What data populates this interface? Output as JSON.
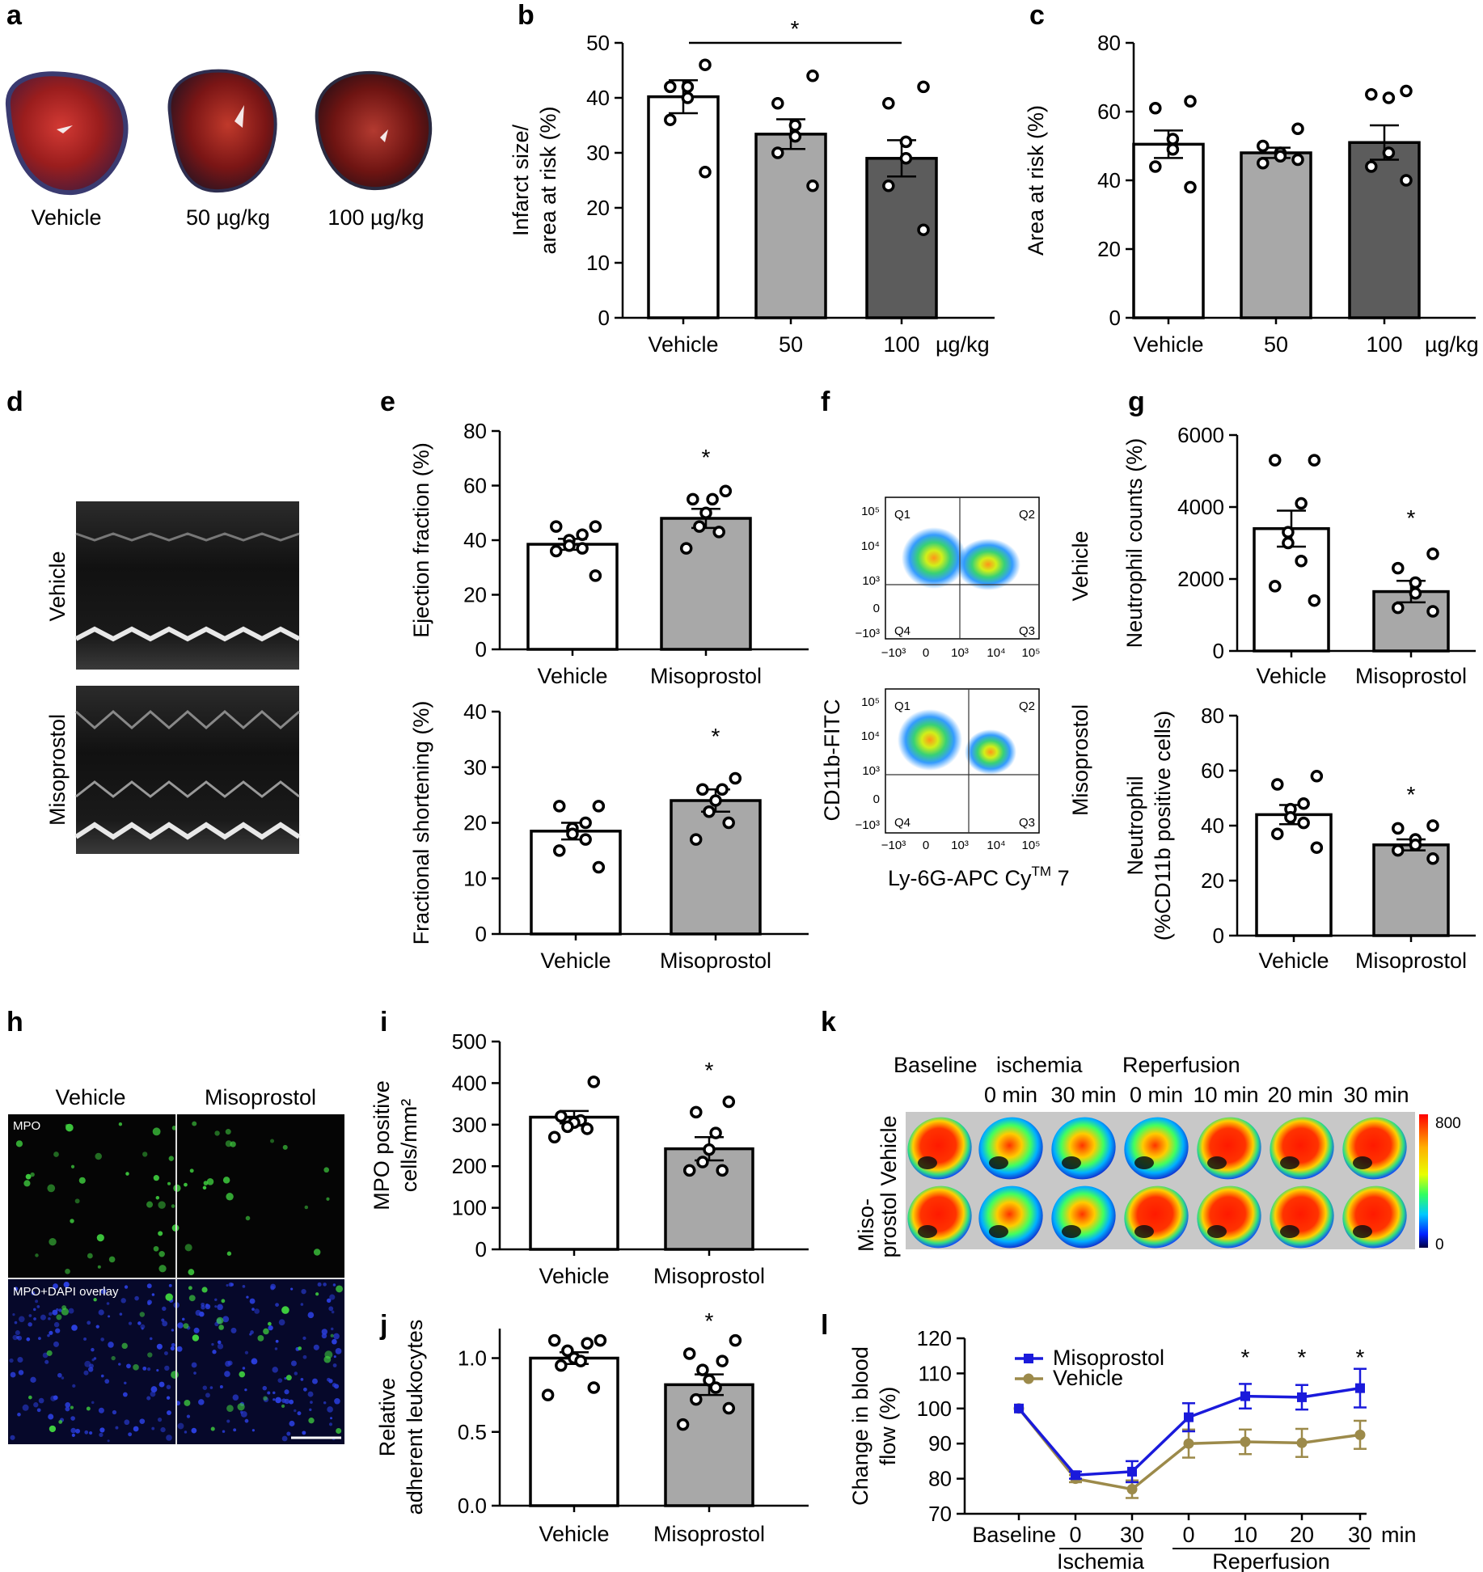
{
  "panel_labels": [
    "a",
    "b",
    "c",
    "d",
    "e",
    "f",
    "g",
    "h",
    "i",
    "j",
    "k",
    "l"
  ],
  "panel_a": {
    "labels": [
      "Vehicle",
      "50 µg/kg",
      "100 µg/kg"
    ]
  },
  "panel_d": {
    "labels": [
      "Vehicle",
      "Misoprostol"
    ]
  },
  "panel_f": {
    "xlabel": "Ly-6G-APC Cy",
    "xlabel_sup": "TM",
    "xlabel_end": " 7",
    "ylabel": "CD11b-FITC",
    "groups": [
      "Vehicle",
      "Misoprostol"
    ],
    "quadrants": [
      "Q1",
      "Q2",
      "Q3",
      "Q4"
    ],
    "ticks_x": [
      "−10³",
      "0",
      "10³",
      "10⁴",
      "10⁵"
    ],
    "ticks_y": [
      "10⁵",
      "10⁴",
      "10³",
      "0",
      "−10³"
    ]
  },
  "panel_h": {
    "columns": [
      "Vehicle",
      "Misoprostol"
    ],
    "row_labels": [
      "MPO",
      "MPO+DAPI overlay"
    ]
  },
  "panel_k": {
    "headers": [
      "Baseline",
      "ischemia",
      "Reperfusion"
    ],
    "times": [
      "0 min",
      "30 min",
      "0 min",
      "10 min",
      "20 min",
      "30 min"
    ],
    "rows": [
      "Vehicle",
      "Miso-",
      "prostol"
    ],
    "scale": [
      "800",
      "0"
    ]
  },
  "chart_data": [
    {
      "panel": "b",
      "type": "bar",
      "categories": [
        "Vehicle",
        "50",
        "100"
      ],
      "unit": "µg/kg",
      "values": [
        40.2,
        33.4,
        29.0
      ],
      "sem": [
        3.0,
        2.7,
        3.3
      ],
      "points": [
        [
          46,
          42,
          42,
          40,
          36,
          26.5
        ],
        [
          44,
          39,
          35,
          33,
          30,
          24
        ],
        [
          42,
          39,
          32,
          29,
          24,
          16
        ]
      ],
      "bar_colors": [
        "#ffffff",
        "#a8a8a8",
        "#5c5c5c"
      ],
      "ylabel": "Infarct size/\narea at risk (%)",
      "ylim": [
        0,
        50
      ],
      "yticks": [
        0,
        10,
        20,
        30,
        40,
        50
      ],
      "significance": "*"
    },
    {
      "panel": "c",
      "type": "bar",
      "categories": [
        "Vehicle",
        "50",
        "100"
      ],
      "unit": "µg/kg",
      "values": [
        50.5,
        48.0,
        51.0
      ],
      "sem": [
        4.0,
        1.5,
        5.0
      ],
      "points": [
        [
          63,
          61,
          52,
          49,
          44,
          38
        ],
        [
          55,
          50,
          48,
          47,
          45,
          46
        ],
        [
          66,
          65,
          64,
          48,
          44,
          40
        ]
      ],
      "bar_colors": [
        "#ffffff",
        "#a8a8a8",
        "#5c5c5c"
      ],
      "ylabel": "Area at risk (%)",
      "ylim": [
        0,
        80
      ],
      "yticks": [
        0,
        20,
        40,
        60,
        80
      ]
    },
    {
      "panel": "e-top",
      "type": "bar",
      "categories": [
        "Vehicle",
        "Misoprostol"
      ],
      "values": [
        38.5,
        48.0
      ],
      "sem": [
        2.0,
        3.5
      ],
      "points": [
        [
          45,
          45,
          42,
          40,
          38,
          37,
          36,
          27
        ],
        [
          58,
          55,
          55,
          50,
          45,
          43,
          37
        ]
      ],
      "bar_colors": [
        "#ffffff",
        "#a8a8a8"
      ],
      "ylabel": "Ejection fraction (%)",
      "ylim": [
        0,
        80
      ],
      "yticks": [
        0,
        20,
        40,
        60,
        80
      ],
      "significance": "*"
    },
    {
      "panel": "e-bottom",
      "type": "bar",
      "categories": [
        "Vehicle",
        "Misoprostol"
      ],
      "values": [
        18.5,
        24.0
      ],
      "sem": [
        1.5,
        2.0
      ],
      "points": [
        [
          23,
          23,
          20,
          19,
          18,
          17,
          15,
          12
        ],
        [
          28,
          26,
          26,
          24,
          22,
          20,
          17
        ]
      ],
      "bar_colors": [
        "#ffffff",
        "#a8a8a8"
      ],
      "ylabel": "Fractional shortening (%)",
      "ylim": [
        0,
        40
      ],
      "yticks": [
        0,
        10,
        20,
        30,
        40
      ],
      "significance": "*"
    },
    {
      "panel": "g-top",
      "type": "bar",
      "categories": [
        "Vehicle",
        "Misoprostol"
      ],
      "values": [
        3400,
        1650
      ],
      "sem": [
        500,
        300
      ],
      "points": [
        [
          5300,
          5300,
          4100,
          3300,
          3000,
          2500,
          1800,
          1400
        ],
        [
          2700,
          2300,
          1900,
          1600,
          1200,
          1100
        ]
      ],
      "bar_colors": [
        "#ffffff",
        "#a8a8a8"
      ],
      "ylabel": "Neutrophil counts (%)",
      "ylim": [
        0,
        6000
      ],
      "yticks": [
        0,
        2000,
        4000,
        6000
      ],
      "significance": "*"
    },
    {
      "panel": "g-bottom",
      "type": "bar",
      "categories": [
        "Vehicle",
        "Misoprostol"
      ],
      "values": [
        44,
        33
      ],
      "sem": [
        3.5,
        2.0
      ],
      "points": [
        [
          58,
          55,
          48,
          46,
          43,
          41,
          37,
          32
        ],
        [
          40,
          39,
          35,
          33,
          31,
          28
        ]
      ],
      "bar_colors": [
        "#ffffff",
        "#a8a8a8"
      ],
      "ylabel": "Neutrophil\n(%CD11b positive cells)",
      "ylim": [
        0,
        80
      ],
      "yticks": [
        0,
        20,
        40,
        60,
        80
      ],
      "significance": "*"
    },
    {
      "panel": "i",
      "type": "bar",
      "categories": [
        "Vehicle",
        "Misoprostol"
      ],
      "values": [
        318,
        242
      ],
      "sem": [
        15,
        28
      ],
      "points": [
        [
          403,
          320,
          310,
          305,
          295,
          290,
          270
        ],
        [
          355,
          330,
          280,
          240,
          210,
          190,
          190
        ]
      ],
      "bar_colors": [
        "#ffffff",
        "#a8a8a8"
      ],
      "ylabel": "MPO positive\ncells/mm²",
      "ylim": [
        0,
        500
      ],
      "yticks": [
        0,
        100,
        200,
        300,
        400,
        500
      ],
      "significance": "*"
    },
    {
      "panel": "j",
      "type": "bar",
      "categories": [
        "Vehicle",
        "Misoprostol"
      ],
      "values": [
        1.0,
        0.82
      ],
      "sem": [
        0.04,
        0.07
      ],
      "points": [
        [
          1.12,
          1.12,
          1.1,
          1.05,
          1.0,
          0.98,
          0.95,
          0.8,
          0.75
        ],
        [
          1.12,
          1.03,
          0.98,
          0.92,
          0.85,
          0.8,
          0.72,
          0.66,
          0.55
        ]
      ],
      "bar_colors": [
        "#ffffff",
        "#a8a8a8"
      ],
      "ylabel": "Relative\nadherent leukocytes",
      "ylim": [
        0,
        1.2
      ],
      "yticks": [
        "0.0",
        "0.5",
        "1.0"
      ],
      "ytick_values": [
        0,
        0.5,
        1.0
      ],
      "significance": "*"
    },
    {
      "panel": "l",
      "type": "line",
      "x": [
        "Baseline",
        "0",
        "30",
        "0",
        "10",
        "20",
        "30"
      ],
      "x_unit": "min",
      "groups": [
        {
          "name": "Ischemia",
          "from": 1,
          "to": 2
        },
        {
          "name": "Reperfusion",
          "from": 3,
          "to": 6
        }
      ],
      "series": [
        {
          "name": "Misoprostol",
          "color": "#1a1adb",
          "values": [
            100,
            81,
            82,
            97.5,
            103.5,
            103.2,
            105.8
          ],
          "sem": [
            0,
            1,
            3,
            4,
            3.5,
            3.5,
            5.5
          ]
        },
        {
          "name": "Vehicle",
          "color": "#9c8a4a",
          "values": [
            100,
            80,
            77,
            90,
            90.5,
            90.2,
            92.5
          ],
          "sem": [
            0,
            1,
            2.5,
            4,
            3.5,
            4,
            4
          ]
        }
      ],
      "ylabel": "Change in blood\nflow (%)",
      "ylim": [
        70,
        120
      ],
      "yticks": [
        70,
        80,
        90,
        100,
        110,
        120
      ],
      "significance_at": [
        4,
        5,
        6
      ],
      "significance": "*"
    }
  ]
}
